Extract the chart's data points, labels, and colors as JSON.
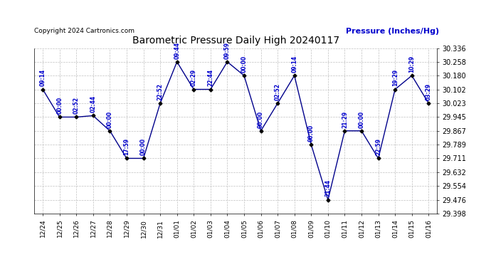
{
  "title": "Barometric Pressure Daily High 20240117",
  "ylabel": "Pressure (Inches/Hg)",
  "copyright": "Copyright 2024 Cartronics.com",
  "dates": [
    "12/24",
    "12/25",
    "12/26",
    "12/27",
    "12/28",
    "12/29",
    "12/30",
    "12/31",
    "01/01",
    "01/02",
    "01/03",
    "01/04",
    "01/05",
    "01/06",
    "01/07",
    "01/08",
    "01/09",
    "01/10",
    "01/11",
    "01/12",
    "01/13",
    "01/14",
    "01/15",
    "01/16"
  ],
  "values": [
    30.102,
    29.945,
    29.945,
    29.953,
    29.867,
    29.711,
    29.711,
    30.023,
    30.258,
    30.102,
    30.102,
    30.258,
    30.18,
    29.867,
    30.023,
    30.18,
    29.789,
    29.476,
    29.867,
    29.867,
    29.711,
    30.102,
    30.18,
    30.023
  ],
  "time_labels": [
    "09:14",
    "00:00",
    "02:52",
    "02:44",
    "00:00",
    "17:59",
    "00:00",
    "22:52",
    "09:44",
    "02:29",
    "22:44",
    "09:59",
    "00:00",
    "00:00",
    "02:52",
    "09:14",
    "00:00",
    "21:44",
    "21:29",
    "00:00",
    "22:59",
    "19:29",
    "10:29",
    "03:29"
  ],
  "ylim_min": 29.398,
  "ylim_max": 30.336,
  "yticks": [
    29.398,
    29.476,
    29.554,
    29.632,
    29.711,
    29.789,
    29.867,
    29.945,
    30.023,
    30.102,
    30.18,
    30.258,
    30.336
  ],
  "line_color": "#00008B",
  "marker_color": "#000000",
  "label_color": "#0000CD",
  "title_color": "#000000",
  "ylabel_color": "#0000CD",
  "copyright_color": "#000000",
  "background_color": "#FFFFFF",
  "grid_color": "#C0C0C0"
}
